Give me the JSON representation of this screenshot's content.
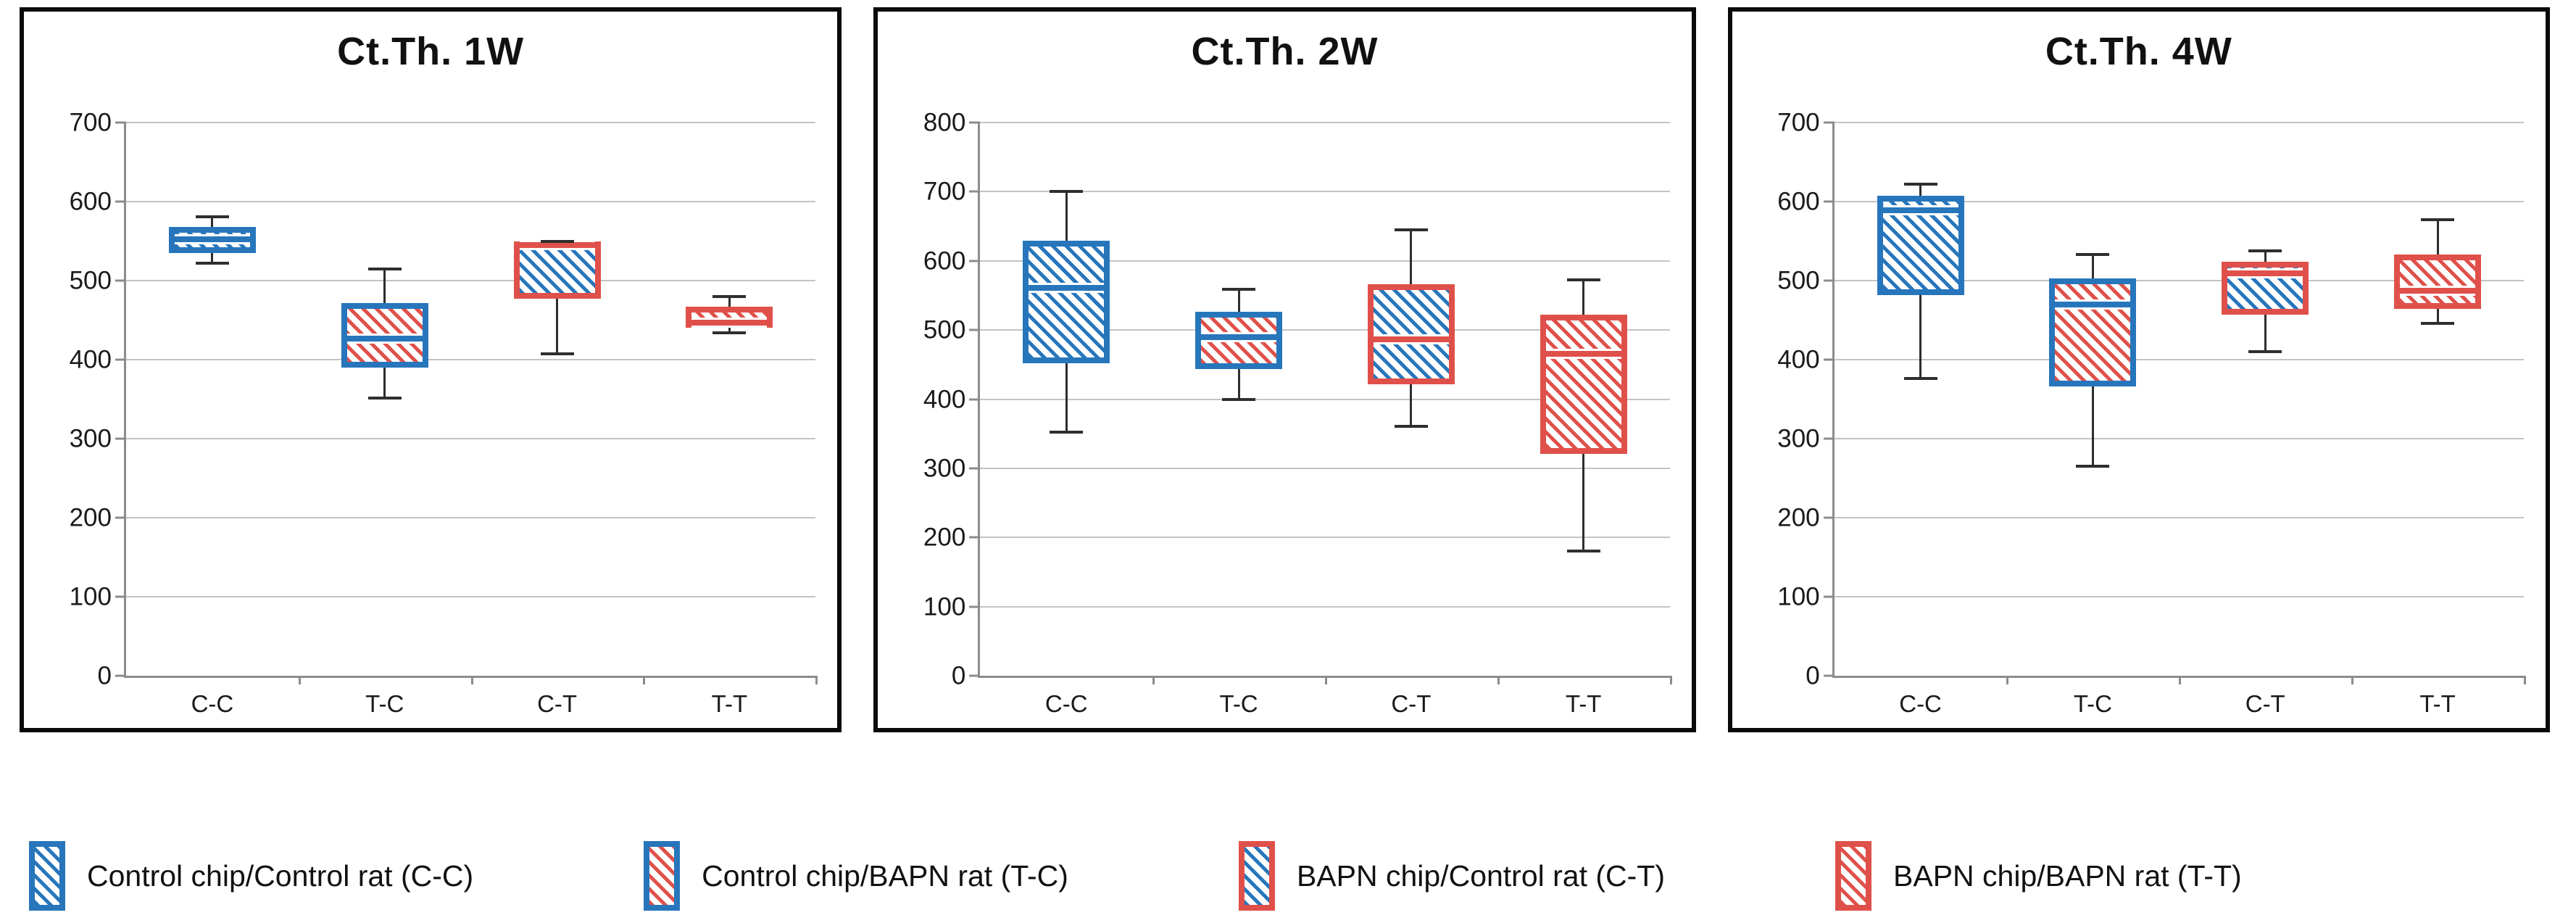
{
  "colors": {
    "blue": "#2776BC",
    "red": "#E0504A",
    "grid": "#C3C3C3",
    "axis": "#8C8C8C",
    "whisker": "#2E2E2E",
    "panel_border": "#0A0A0A"
  },
  "chart_data": [
    {
      "type": "box",
      "title": "Ct.Th. 1W",
      "categories": [
        "C-C",
        "T-C",
        "C-T",
        "T-T"
      ],
      "ylim": [
        0,
        700
      ],
      "ytick": 100,
      "grid": "horizontal",
      "series": [
        {
          "category": "C-C",
          "border": "blue",
          "hatch": "blue",
          "low": 522,
          "q1": 535,
          "median": 552,
          "q3": 568,
          "high": 581
        },
        {
          "category": "T-C",
          "border": "blue",
          "hatch": "red",
          "low": 351,
          "q1": 390,
          "median": 427,
          "q3": 472,
          "high": 515
        },
        {
          "category": "C-T",
          "border": "red",
          "hatch": "blue",
          "low": 407,
          "q1": 477,
          "median": 545,
          "q3": 550,
          "high": 550
        },
        {
          "category": "T-T",
          "border": "red",
          "hatch": "red",
          "low": 434,
          "q1": 440,
          "median": 447,
          "q3": 467,
          "high": 480
        }
      ]
    },
    {
      "type": "box",
      "title": "Ct.Th. 2W",
      "categories": [
        "C-C",
        "T-C",
        "C-T",
        "T-T"
      ],
      "ylim": [
        0,
        800
      ],
      "ytick": 100,
      "grid": "horizontal",
      "series": [
        {
          "category": "C-C",
          "border": "blue",
          "hatch": "blue",
          "low": 352,
          "q1": 452,
          "median": 561,
          "q3": 629,
          "high": 700
        },
        {
          "category": "T-C",
          "border": "blue",
          "hatch": "red",
          "low": 400,
          "q1": 444,
          "median": 490,
          "q3": 526,
          "high": 559
        },
        {
          "category": "C-T",
          "border": "red",
          "hatch": "blue",
          "low": 361,
          "q1": 421,
          "median": 487,
          "q3": 566,
          "high": 645
        },
        {
          "category": "T-T",
          "border": "red",
          "hatch": "red",
          "low": 180,
          "q1": 321,
          "median": 466,
          "q3": 522,
          "high": 573
        }
      ]
    },
    {
      "type": "box",
      "title": "Ct.Th. 4W",
      "categories": [
        "C-C",
        "T-C",
        "C-T",
        "T-T"
      ],
      "ylim": [
        0,
        700
      ],
      "ytick": 100,
      "grid": "horizontal",
      "series": [
        {
          "category": "C-C",
          "border": "blue",
          "hatch": "blue",
          "low": 376,
          "q1": 482,
          "median": 589,
          "q3": 607,
          "high": 622
        },
        {
          "category": "T-C",
          "border": "blue",
          "hatch": "red",
          "low": 265,
          "q1": 366,
          "median": 470,
          "q3": 503,
          "high": 533
        },
        {
          "category": "C-T",
          "border": "red",
          "hatch": "blue",
          "low": 410,
          "q1": 457,
          "median": 509,
          "q3": 524,
          "high": 538
        },
        {
          "category": "T-T",
          "border": "red",
          "hatch": "red",
          "low": 446,
          "q1": 464,
          "median": 487,
          "q3": 533,
          "high": 577
        }
      ]
    }
  ],
  "legend": {
    "items": [
      {
        "label": "Control chip/Control rat (C-C)",
        "border": "blue",
        "hatch": "blue"
      },
      {
        "label": "Control chip/BAPN rat (T-C)",
        "border": "blue",
        "hatch": "red"
      },
      {
        "label": "BAPN chip/Control rat (C-T)",
        "border": "red",
        "hatch": "blue"
      },
      {
        "label": "BAPN chip/BAPN rat (T-T)",
        "border": "red",
        "hatch": "red"
      }
    ]
  }
}
